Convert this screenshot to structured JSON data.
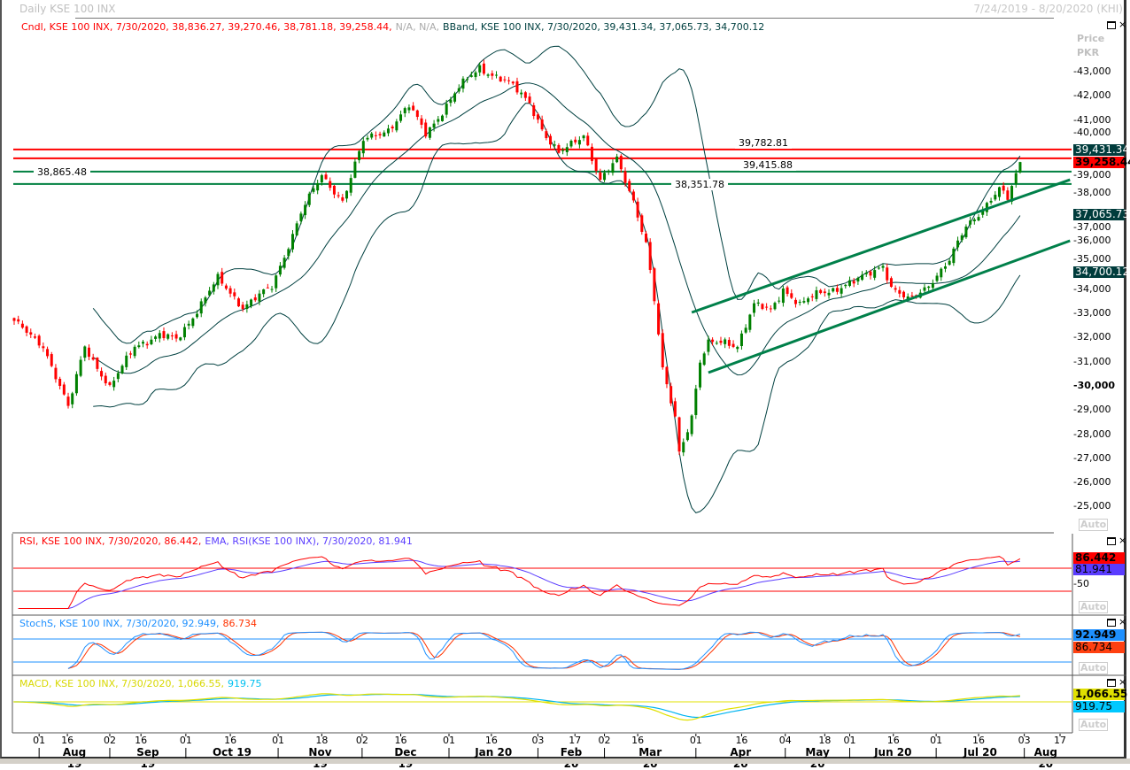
{
  "header": {
    "title": "Daily KSE 100 INX",
    "date_range": "7/24/2019 - 8/20/2020 (KHI)",
    "price_label": "Price",
    "currency_label": "PKR",
    "auto_label": "Auto"
  },
  "legends": {
    "candle": "Cndl, KSE 100 INX, 7/30/2020, 38,836.27, 39,270.46, 38,781.18, 39,258.44,",
    "candle_na": "N/A, N/A,",
    "bband": "BBand, KSE 100 INX, 7/30/2020, 39,431.34, 37,065.73, 34,700.12",
    "rsi": "RSI, KSE 100 INX, 7/30/2020, 86.442,",
    "rsi_ema": "EMA, RSI(KSE 100 INX), 7/30/2020, 81.941",
    "stoch_k": "StochS, KSE 100 INX, 7/30/2020, 92.949,",
    "stoch_d": "86.734",
    "macd": "MACD, KSE 100 INX, 7/30/2020, 1,066.55,",
    "macd_signal": "919.75"
  },
  "badges": {
    "bb_upper": "39,431.34",
    "last_close": "39,258.44",
    "bb_mid": "37,065.73",
    "bb_lower": "34,700.12",
    "rsi": "86.442",
    "rsi_ema": "81.941",
    "rsi_mid": "50",
    "stoch_k": "92.949",
    "stoch_d": "86.734",
    "macd": "1,066.55",
    "macd_signal": "919.75"
  },
  "colors": {
    "up": "#008000",
    "down": "#ff0000",
    "band": "#004040",
    "res": "#ff0000",
    "sup": "#008040",
    "channel": "#00804a",
    "rsi": "#ff0000",
    "rsi_ema": "#5a3cff",
    "stoch_k": "#1e90ff",
    "stoch_d": "#ff3300",
    "macd": "#e0e000",
    "macd_signal": "#00b4f0",
    "badge_dark": "#003c3c"
  },
  "chart_data": {
    "type": "candlestick",
    "title": "Daily KSE 100 INX",
    "ylabel": "Price PKR",
    "ylim": [
      24500,
      44500
    ],
    "y_ticks": [
      "43,000",
      "42,000",
      "41,000",
      "40,000",
      "39,000",
      "38,000",
      "37,000",
      "36,000",
      "35,000",
      "34,000",
      "33,000",
      "32,000",
      "31,000",
      "30,000",
      "29,000",
      "28,000",
      "27,000",
      "26,000",
      "25,000"
    ],
    "bars": 243,
    "last_candle": {
      "date": "7/30/2020",
      "open": 38836.27,
      "high": 39270.46,
      "low": 38781.18,
      "close": 39258.44
    },
    "close_keypoints": [
      [
        0,
        32600
      ],
      [
        7,
        31700
      ],
      [
        13,
        29050
      ],
      [
        17,
        31700
      ],
      [
        23,
        29850
      ],
      [
        29,
        31700
      ],
      [
        35,
        32050
      ],
      [
        39,
        31900
      ],
      [
        49,
        34400
      ],
      [
        55,
        33300
      ],
      [
        62,
        34050
      ],
      [
        69,
        37200
      ],
      [
        74,
        38650
      ],
      [
        79,
        37700
      ],
      [
        84,
        40100
      ],
      [
        90,
        40650
      ],
      [
        95,
        41550
      ],
      [
        99,
        40450
      ],
      [
        107,
        42300
      ],
      [
        112,
        43200
      ],
      [
        119,
        42500
      ],
      [
        124,
        41750
      ],
      [
        128,
        40300
      ],
      [
        131,
        39550
      ],
      [
        137,
        40450
      ],
      [
        141,
        38450
      ],
      [
        145,
        39350
      ],
      [
        149,
        37700
      ],
      [
        152,
        35900
      ],
      [
        154,
        33500
      ],
      [
        156,
        30600
      ],
      [
        159,
        28750
      ],
      [
        160,
        27300
      ],
      [
        163,
        28750
      ],
      [
        165,
        30950
      ],
      [
        167,
        31700
      ],
      [
        171,
        31850
      ],
      [
        174,
        31700
      ],
      [
        178,
        33300
      ],
      [
        182,
        33150
      ],
      [
        185,
        34050
      ],
      [
        189,
        33300
      ],
      [
        194,
        33900
      ],
      [
        198,
        34050
      ],
      [
        202,
        34250
      ],
      [
        209,
        35050
      ],
      [
        211,
        34050
      ],
      [
        215,
        33500
      ],
      [
        219,
        34050
      ],
      [
        225,
        35150
      ],
      [
        229,
        36600
      ],
      [
        233,
        37350
      ],
      [
        237,
        38100
      ],
      [
        239,
        37700
      ],
      [
        242,
        39258.44
      ]
    ],
    "horizontal_lines": [
      {
        "value": 39782.81,
        "label": "39,782.81",
        "kind": "resistance"
      },
      {
        "value": 39415.88,
        "label": "39,415.88",
        "kind": "resistance"
      },
      {
        "value": 38865.48,
        "label": "38,865.48",
        "kind": "support"
      },
      {
        "value": 38351.78,
        "label": "38,351.78",
        "kind": "support"
      }
    ],
    "channel": {
      "upper": [
        [
          163,
          33037
        ],
        [
          254,
          38530
        ]
      ],
      "lower": [
        [
          167,
          30546
        ],
        [
          254,
          36004
        ]
      ]
    },
    "bollinger": {
      "period": 20,
      "stddev": 2,
      "upper": 39431.34,
      "middle": 37065.73,
      "lower": 34700.12
    },
    "rsi": {
      "period": 14,
      "value": 86.442,
      "ema": 81.941,
      "levels": [
        70,
        30
      ]
    },
    "stochastic": {
      "k": 92.949,
      "d": 86.734,
      "levels": [
        80,
        20
      ]
    },
    "macd": {
      "value": 1066.55,
      "signal": 919.75
    },
    "x_ticks": [
      {
        "label": "01",
        "bar": 6
      },
      {
        "label": "16",
        "bar": 12.8
      },
      {
        "label": "02",
        "bar": 23
      },
      {
        "label": "16",
        "bar": 30.5
      },
      {
        "label": "01",
        "bar": 41.3
      },
      {
        "label": "16",
        "bar": 52
      },
      {
        "label": "01",
        "bar": 63.5
      },
      {
        "label": "18",
        "bar": 74
      },
      {
        "label": "02",
        "bar": 83.7
      },
      {
        "label": "16",
        "bar": 93
      },
      {
        "label": "01",
        "bar": 104.6
      },
      {
        "label": "16",
        "bar": 114.8
      },
      {
        "label": "03",
        "bar": 126
      },
      {
        "label": "17",
        "bar": 134.9
      },
      {
        "label": "02",
        "bar": 142
      },
      {
        "label": "16",
        "bar": 150
      },
      {
        "label": "01",
        "bar": 164
      },
      {
        "label": "16",
        "bar": 175
      },
      {
        "label": "04",
        "bar": 185.5
      },
      {
        "label": "18",
        "bar": 195
      },
      {
        "label": "01",
        "bar": 201
      },
      {
        "label": "16",
        "bar": 211.5
      },
      {
        "label": "01",
        "bar": 221.8
      },
      {
        "label": "16",
        "bar": 232
      },
      {
        "label": "03",
        "bar": 243
      },
      {
        "label": "17",
        "bar": 251.6
      }
    ],
    "months": [
      {
        "label": "Aug 19",
        "start": 6,
        "end": 23
      },
      {
        "label": "Sep 19",
        "start": 23,
        "end": 41.3
      },
      {
        "label": "Oct 19",
        "start": 41.3,
        "end": 63.5
      },
      {
        "label": "Nov 19",
        "start": 63.5,
        "end": 83.7
      },
      {
        "label": "Dec 19",
        "start": 83.7,
        "end": 104.6
      },
      {
        "label": "Jan 20",
        "start": 104.6,
        "end": 126
      },
      {
        "label": "Feb 20",
        "start": 126,
        "end": 142
      },
      {
        "label": "Mar 20",
        "start": 142,
        "end": 164
      },
      {
        "label": "Apr 20",
        "start": 164,
        "end": 185.5
      },
      {
        "label": "May 20",
        "start": 185.5,
        "end": 201
      },
      {
        "label": "Jun 20",
        "start": 201,
        "end": 221.8
      },
      {
        "label": "Jul 20",
        "start": 221.8,
        "end": 243
      },
      {
        "label": "Aug 20",
        "start": 243,
        "end": 257
      }
    ]
  }
}
